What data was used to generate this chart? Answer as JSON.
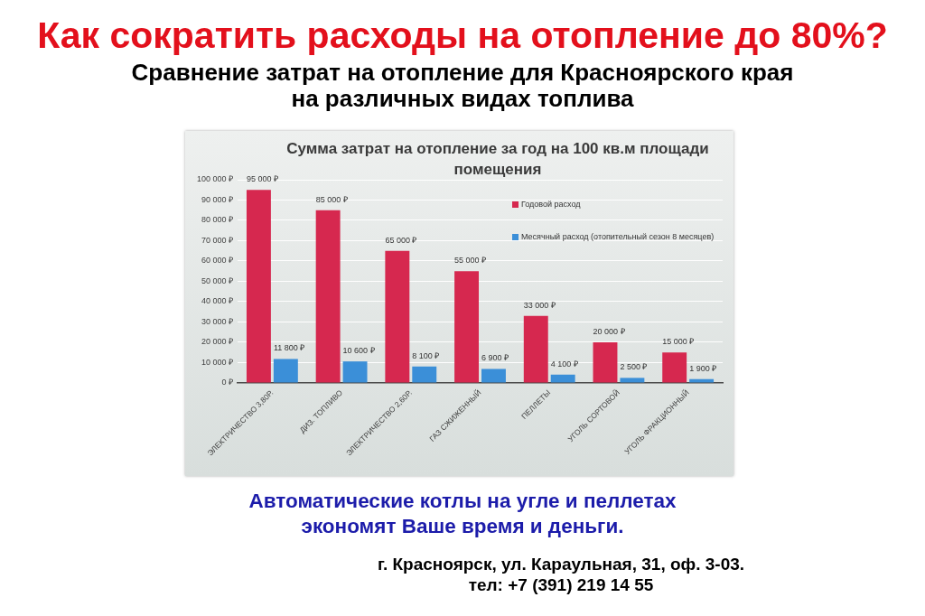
{
  "chart_data": {
    "type": "bar",
    "title": "Как сократить расходы на отопление до 80%?",
    "subtitle": "Сравнение затрат на отопление для Красноярского края на различных видах топлива",
    "annotations": [
      "Сумма затрат на отопление за год на 100 кв.м площади помещения",
      "Автоматические котлы на угле и пеллетах экономят Ваше время и деньги.",
      "г. Красноярск, ул. Караульная, 31, оф. 3-03.",
      "тел: +7 (391) 219 14 55"
    ],
    "categories": [
      "ЭЛЕКТРИЧЕСТВО 3,80Р.",
      "ДИЗ. ТОПЛИВО",
      "ЭЛЕКТРИЧЕСТВО 2,60Р.",
      "ГАЗ СЖИЖЕННЫЙ",
      "ПЕЛЛЕТЫ",
      "УГОЛЬ СОРТОВОЙ",
      "УГОЛЬ ФРАКЦИОННЫЙ"
    ],
    "series": [
      {
        "name": "Годовой расход",
        "color": "#d6284f",
        "values": [
          95000,
          85000,
          65000,
          55000,
          33000,
          20000,
          15000
        ],
        "value_labels": [
          "95 000 ₽",
          "85 000 ₽",
          "65 000 ₽",
          "55 000 ₽",
          "33 000 ₽",
          "20 000 ₽",
          "15 000 ₽"
        ]
      },
      {
        "name": "Месячный расход (отопительный сезон 8 месяцев)",
        "color": "#3b8fd8",
        "values": [
          11800,
          10600,
          8100,
          6900,
          4100,
          2500,
          1900
        ],
        "value_labels": [
          "11 800 ₽",
          "10 600 ₽",
          "8 100 ₽",
          "6 900 ₽",
          "4 100 ₽",
          "2 500 ₽",
          "1 900 ₽"
        ]
      }
    ],
    "ylim": [
      0,
      100000
    ],
    "yticks": [
      {
        "value": 0,
        "label": "0 ₽"
      },
      {
        "value": 10000,
        "label": "10 000 ₽"
      },
      {
        "value": 20000,
        "label": "20 000 ₽"
      },
      {
        "value": 30000,
        "label": "30 000 ₽"
      },
      {
        "value": 40000,
        "label": "40 000 ₽"
      },
      {
        "value": 50000,
        "label": "50 000 ₽"
      },
      {
        "value": 60000,
        "label": "60 000 ₽"
      },
      {
        "value": 70000,
        "label": "70 000 ₽"
      },
      {
        "value": 80000,
        "label": "80 000 ₽"
      },
      {
        "value": 90000,
        "label": "90 000 ₽"
      },
      {
        "value": 100000,
        "label": "100 000 ₽"
      }
    ],
    "grid": "y",
    "legend": "top right"
  }
}
